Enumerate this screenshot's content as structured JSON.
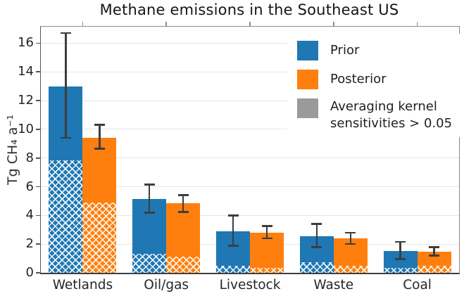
{
  "window": {
    "title": "Methane emissions in the Southeast US"
  },
  "chart_data": {
    "type": "bar",
    "title": "Methane emissions in the Southeast US",
    "xlabel": "",
    "ylabel": "Tg CH₄ a⁻¹",
    "categories": [
      "Wetlands",
      "Oil/gas",
      "Livestock",
      "Waste",
      "Coal"
    ],
    "ylim": [
      0,
      17.15
    ],
    "yticks": [
      0,
      2,
      4,
      6,
      8,
      10,
      12,
      14,
      16
    ],
    "grid": "horizontal light-gray lines at every y tick",
    "legend_position": "upper right inside plot",
    "series": [
      {
        "name": "Prior",
        "color": "#1f77b4",
        "values": [
          13.0,
          5.15,
          2.9,
          2.55,
          1.5
        ],
        "err_low": [
          9.4,
          4.2,
          1.9,
          1.8,
          0.95
        ],
        "err_high": [
          16.7,
          6.15,
          4.0,
          3.4,
          2.15
        ],
        "hatched_values": [
          7.85,
          1.3,
          0.5,
          0.75,
          0.32
        ]
      },
      {
        "name": "Posterior",
        "color": "#ff7f0e",
        "values": [
          9.4,
          4.85,
          2.8,
          2.4,
          1.45
        ],
        "err_low": [
          8.65,
          4.25,
          2.4,
          2.0,
          1.2
        ],
        "err_high": [
          10.3,
          5.4,
          3.25,
          2.8,
          1.8
        ],
        "hatched_values": [
          4.9,
          1.15,
          0.35,
          0.5,
          0.5
        ]
      }
    ],
    "hatch_meaning": "Averaging kernel sensitivities > 0.05"
  },
  "legend": {
    "prior_label": "Prior",
    "posterior_label": "Posterior",
    "hatch_line1": "Averaging kernel",
    "hatch_line2": "sensitivities > 0.05",
    "hatch_swatch_color": "#9a9a9a"
  },
  "colors": {
    "prior": "#1f77b4",
    "posterior": "#ff7f0e",
    "error_bar": "#3d3d3d",
    "gridline": "#e7e7e7",
    "background": "#ffffff"
  }
}
